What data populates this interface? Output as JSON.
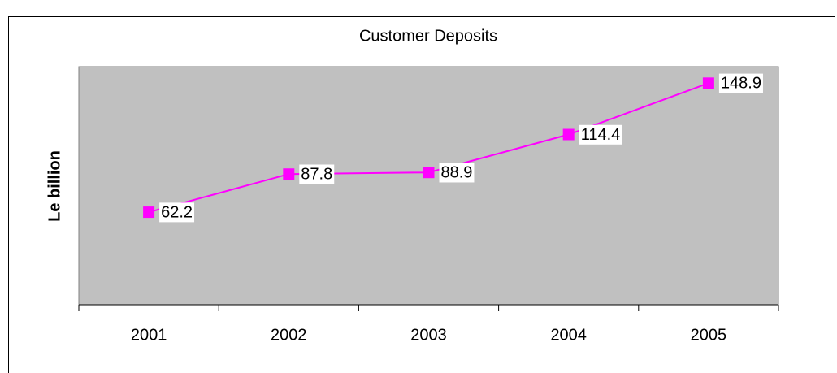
{
  "chart_data": {
    "type": "line",
    "title": "Customer Deposits",
    "y_label": "Le billion",
    "categories": [
      "2001",
      "2002",
      "2003",
      "2004",
      "2005"
    ],
    "series": [
      {
        "name": "Customer Deposits",
        "color": "#ff00ff",
        "values": [
          62.2,
          87.8,
          88.9,
          114.4,
          148.9
        ]
      }
    ],
    "ylim": [
      0,
      160
    ],
    "plot_background": "#c0c0c0"
  }
}
